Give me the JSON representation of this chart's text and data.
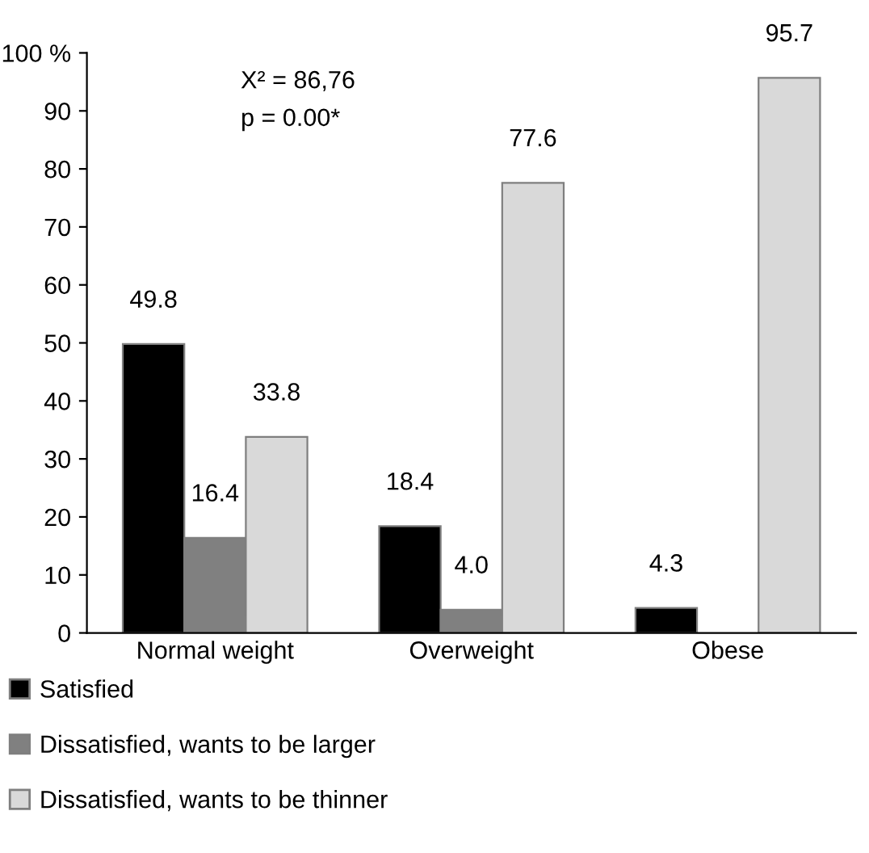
{
  "chart_data": {
    "type": "bar",
    "categories": [
      "Normal weight",
      "Overweight",
      "Obese"
    ],
    "series": [
      {
        "name": "Satisfied",
        "color": "#000000",
        "values": [
          49.8,
          18.4,
          4.3
        ],
        "value_labels": [
          "49.8",
          "18.4",
          "4.3"
        ]
      },
      {
        "name": "Dissatisfied, wants to be larger",
        "color": "#808080",
        "values": [
          16.4,
          4.0,
          null
        ],
        "value_labels": [
          "16.4",
          "4.0",
          null
        ]
      },
      {
        "name": "Dissatisfied, wants to be thinner",
        "color": "#d9d9d9",
        "values": [
          33.8,
          77.6,
          95.7
        ],
        "value_labels": [
          "33.8",
          "77.6",
          "95.7"
        ]
      }
    ],
    "ylim": [
      0,
      100
    ],
    "yticks": [
      0,
      10,
      20,
      30,
      40,
      50,
      60,
      70,
      80,
      90,
      {
        "value": 100,
        "label": "100 %"
      }
    ],
    "annotations": [
      "X² = 86,76",
      "p = 0.00*"
    ],
    "grid": false,
    "legend": "bottom"
  }
}
